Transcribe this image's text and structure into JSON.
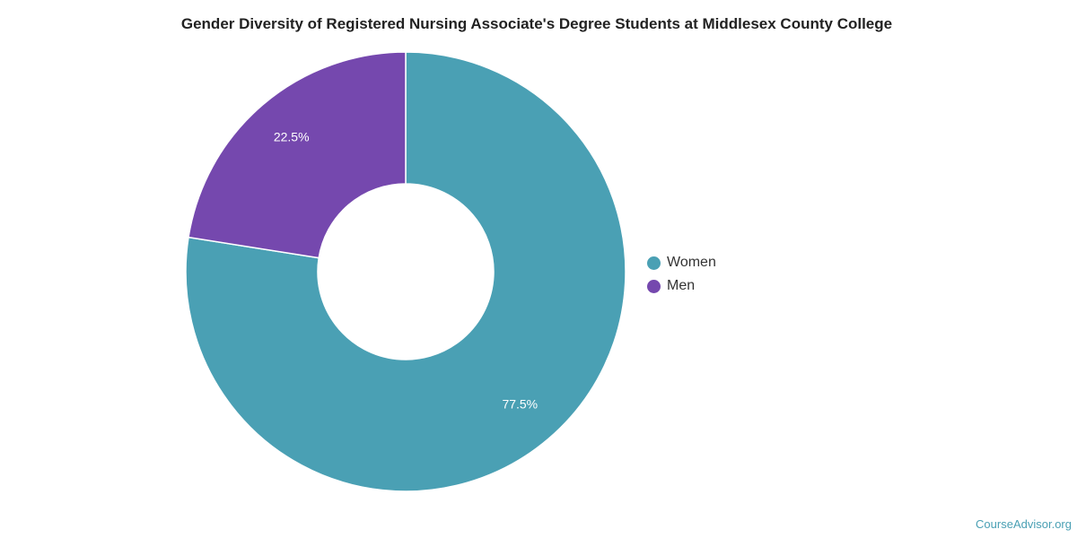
{
  "chart_data": {
    "type": "pie",
    "title": "Gender Diversity of Registered Nursing Associate's Degree Students at Middlesex County College",
    "categories": [
      "Women",
      "Men"
    ],
    "values": [
      77.5,
      22.5
    ],
    "labels": [
      "77.5%",
      "22.5%"
    ],
    "colors": [
      "#4aa0b4",
      "#7548ae"
    ],
    "donut": true,
    "legend_position": "right"
  },
  "watermark": "CourseAdvisor.org"
}
